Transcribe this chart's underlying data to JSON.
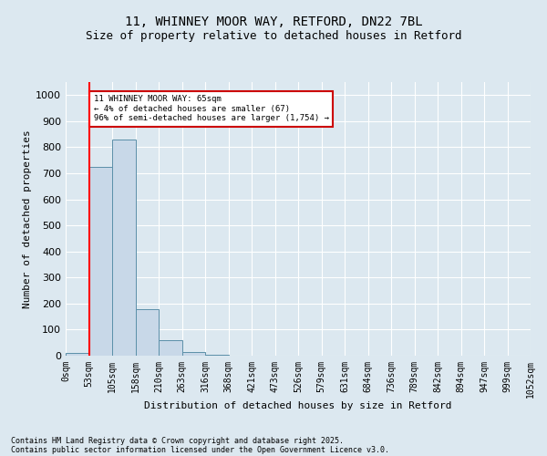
{
  "title_line1": "11, WHINNEY MOOR WAY, RETFORD, DN22 7BL",
  "title_line2": "Size of property relative to detached houses in Retford",
  "xlabel": "Distribution of detached houses by size in Retford",
  "ylabel": "Number of detached properties",
  "bar_values": [
    10,
    725,
    830,
    180,
    58,
    15,
    5,
    0,
    0,
    0,
    0,
    0,
    0,
    0,
    0,
    0,
    0,
    0,
    0,
    0
  ],
  "bar_color": "#c8d8e8",
  "bar_edgecolor": "#5b8fa8",
  "tick_labels": [
    "0sqm",
    "53sqm",
    "105sqm",
    "158sqm",
    "210sqm",
    "263sqm",
    "316sqm",
    "368sqm",
    "421sqm",
    "473sqm",
    "526sqm",
    "579sqm",
    "631sqm",
    "684sqm",
    "736sqm",
    "789sqm",
    "842sqm",
    "894sqm",
    "947sqm",
    "999sqm",
    "1052sqm"
  ],
  "ylim": [
    0,
    1050
  ],
  "yticks": [
    0,
    100,
    200,
    300,
    400,
    500,
    600,
    700,
    800,
    900,
    1000
  ],
  "red_line_x": 1,
  "annotation_text": "11 WHINNEY MOOR WAY: 65sqm\n← 4% of detached houses are smaller (67)\n96% of semi-detached houses are larger (1,754) →",
  "annotation_box_color": "#ffffff",
  "annotation_box_edgecolor": "#cc0000",
  "footer_line1": "Contains HM Land Registry data © Crown copyright and database right 2025.",
  "footer_line2": "Contains public sector information licensed under the Open Government Licence v3.0.",
  "bg_color": "#dce8f0",
  "plot_bg_color": "#dce8f0",
  "grid_color": "#ffffff",
  "title1_fontsize": 10,
  "title2_fontsize": 9,
  "axis_label_fontsize": 8,
  "tick_fontsize": 7,
  "footer_fontsize": 6
}
